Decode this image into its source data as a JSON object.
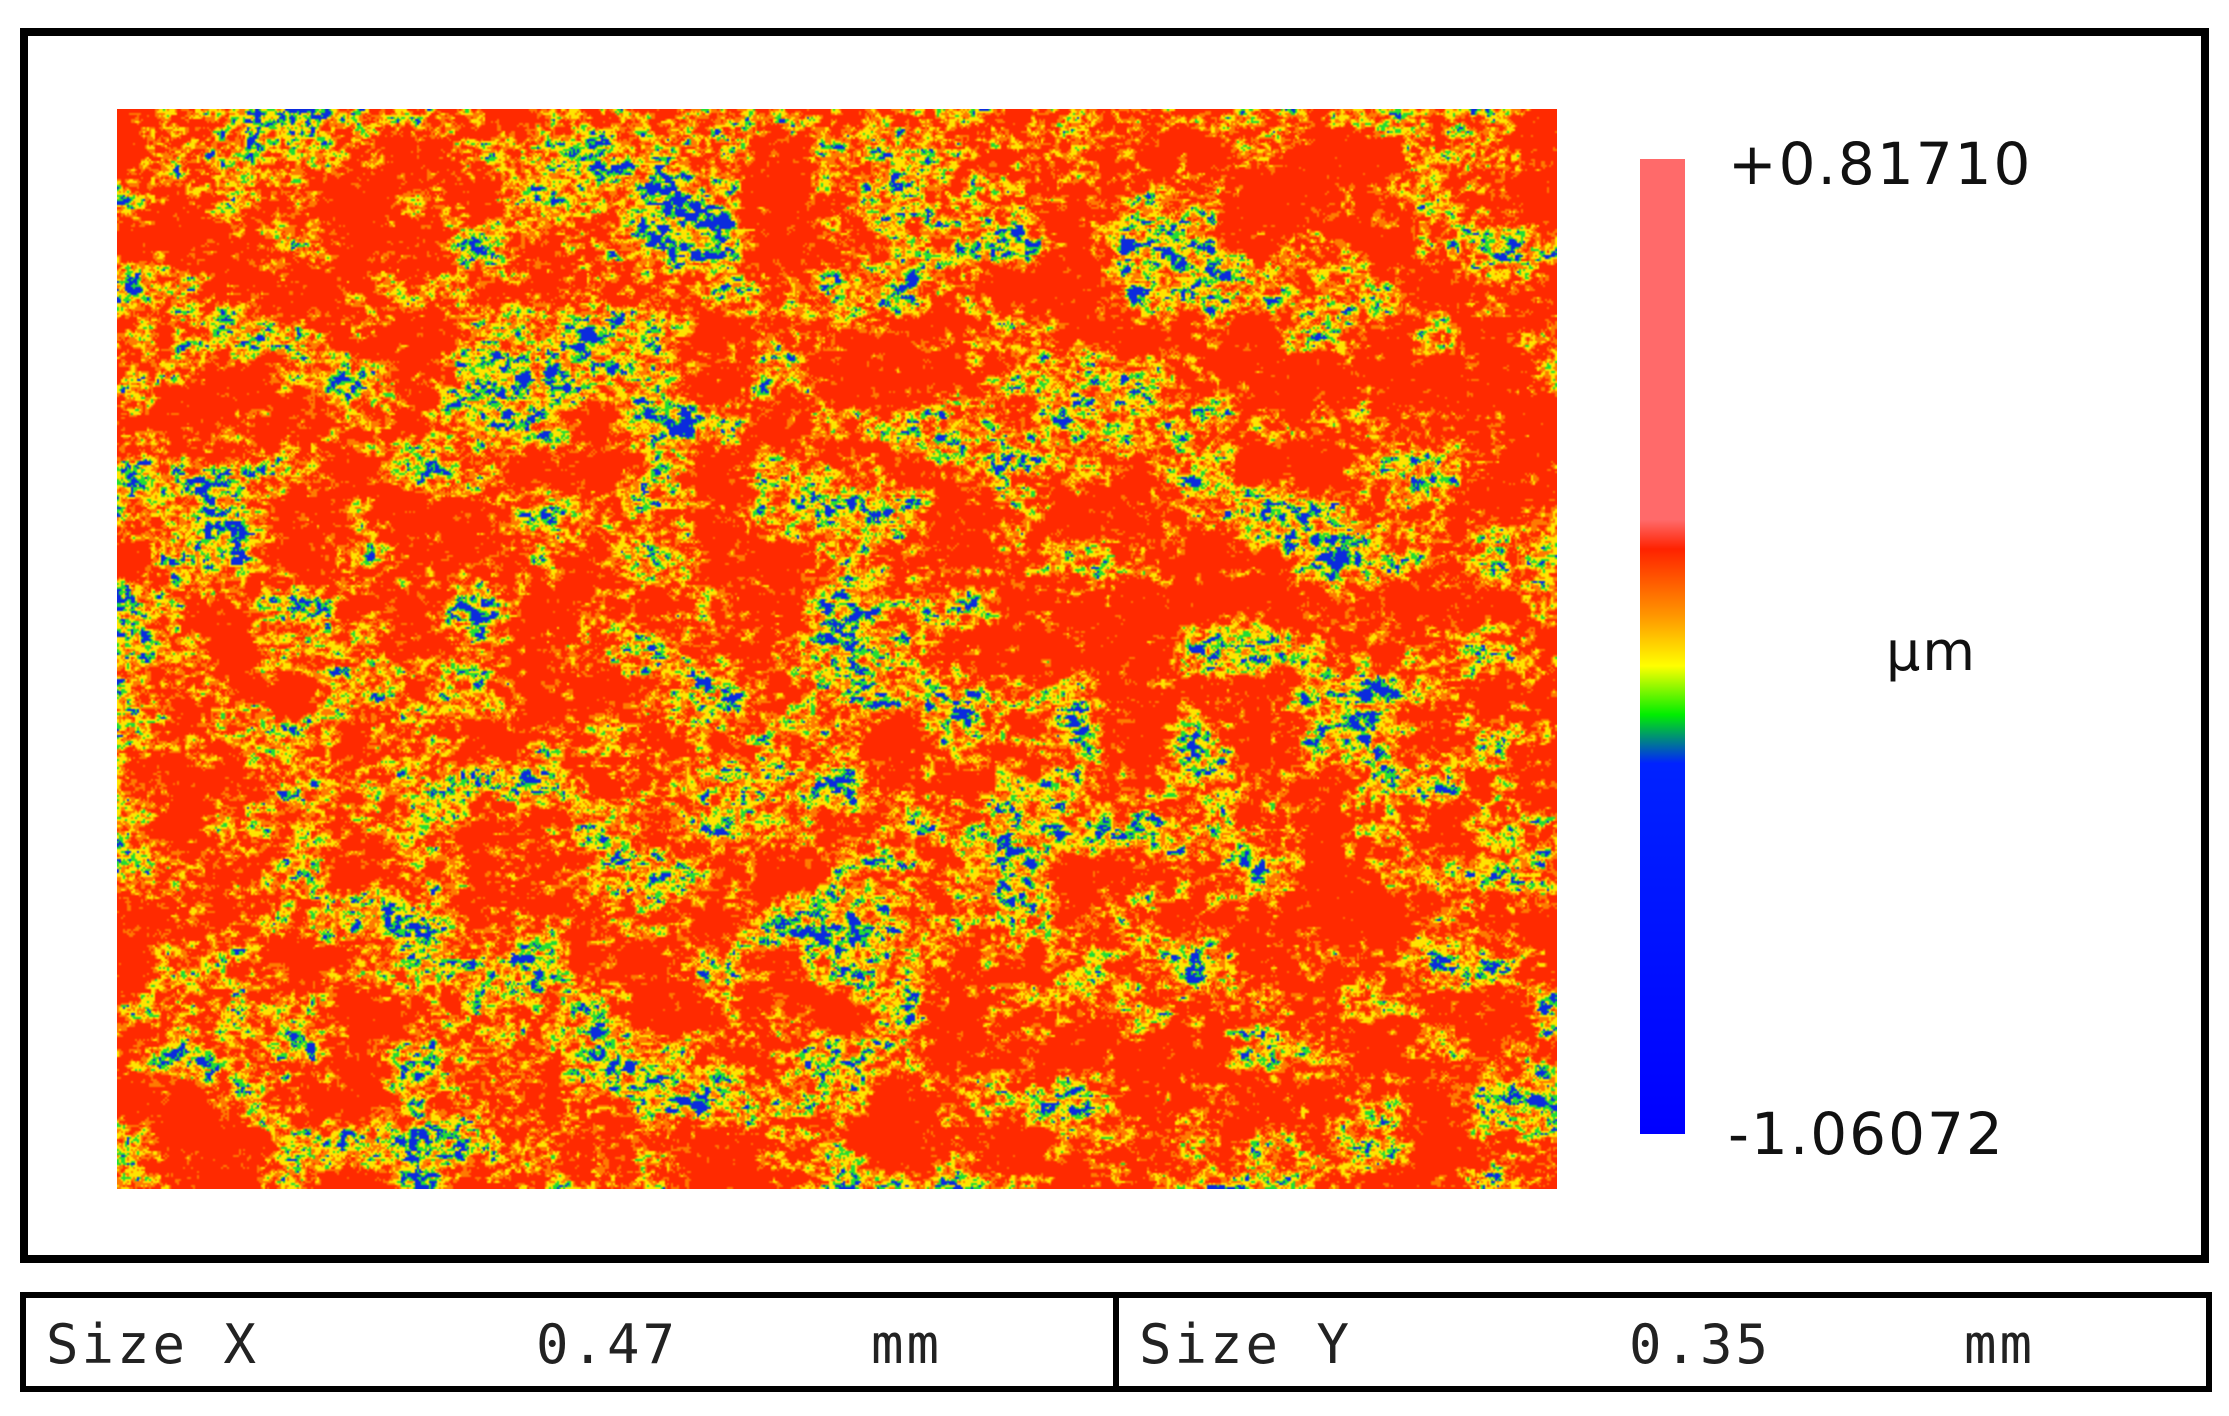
{
  "colorbar": {
    "max_label": "+0.81710",
    "min_label": "-1.06072",
    "unit": "µm",
    "stops": [
      "#ff6a6a",
      "#ff6a6a",
      "#ff2200",
      "#ff9900",
      "#ffff00",
      "#00ee00",
      "#0022ff",
      "#0000ff"
    ]
  },
  "surface_map": {
    "colors": {
      "red": "#ff2a00",
      "orange": "#ff7a00",
      "yellow": "#ffe400",
      "green": "#22dd33",
      "blue": "#0b2bdd"
    }
  },
  "info": {
    "size_x": {
      "label": "Size X",
      "value": "0.47",
      "unit": "mm"
    },
    "size_y": {
      "label": "Size Y",
      "value": "0.35",
      "unit": "mm"
    }
  }
}
